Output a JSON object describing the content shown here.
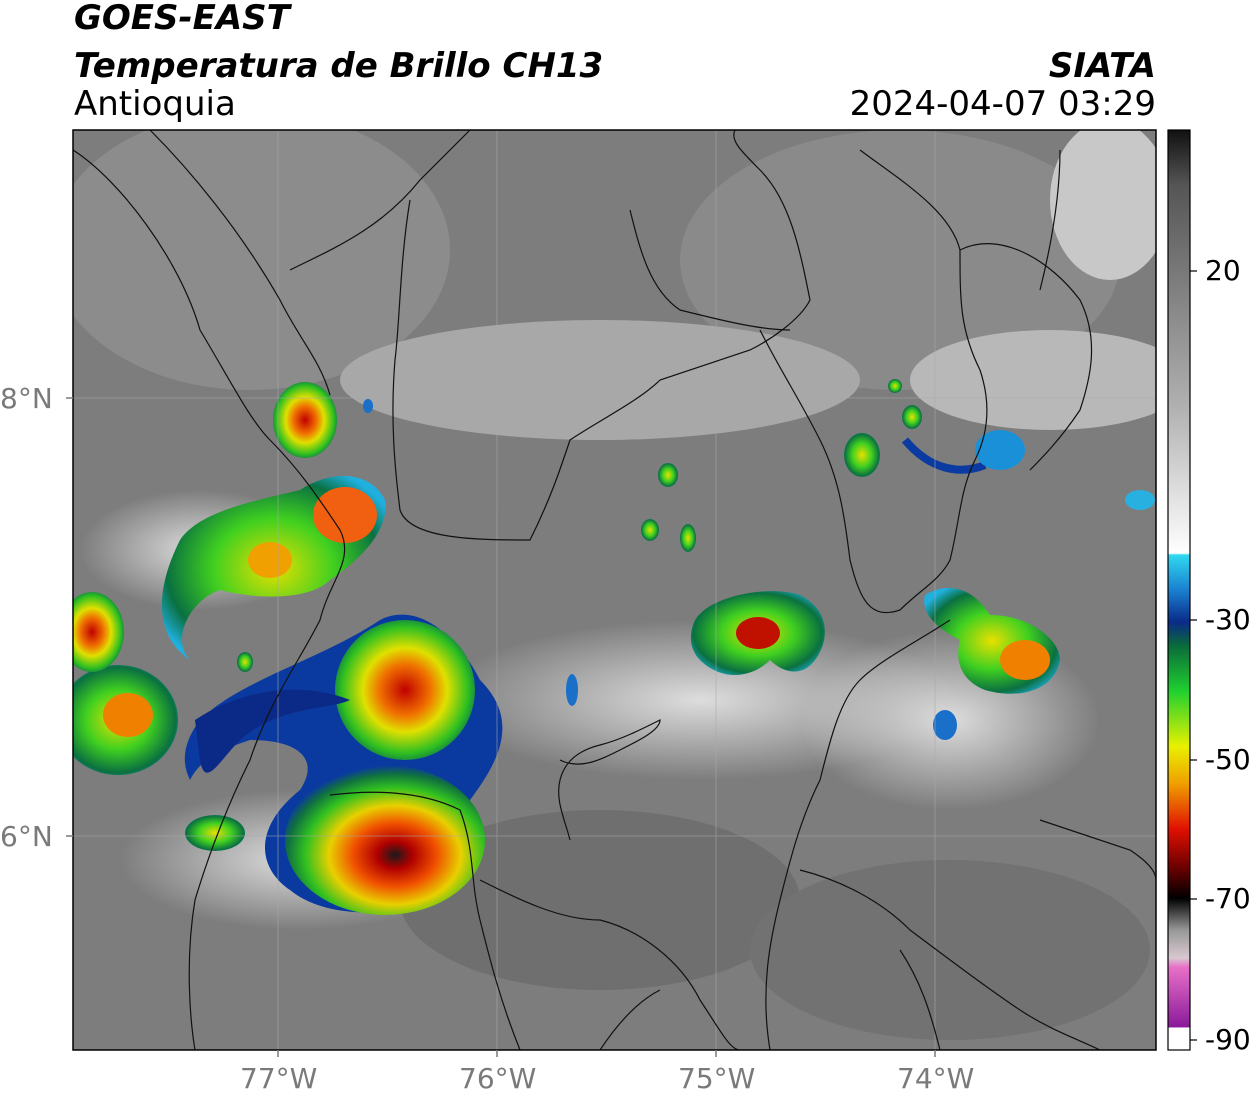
{
  "header": {
    "satellite": "GOES-EAST",
    "product": "Temperatura de Brillo CH13",
    "region": "Antioquia",
    "agency": "SIATA",
    "datetime": "2024-04-07 03:29"
  },
  "map": {
    "latitude_ticks": [
      "8°N",
      "6°N"
    ],
    "longitude_ticks": [
      "77°W",
      "76°W",
      "75°W",
      "74°W"
    ],
    "extent": {
      "lon_min": -77.95,
      "lon_max": -73.05,
      "lat_min": 5.05,
      "lat_max": 9.2
    }
  },
  "colorbar": {
    "tick_labels": [
      "20",
      "-30",
      "-50",
      "-70",
      "-90"
    ],
    "colors": {
      "warm_gray": "#7a7a7a",
      "cyan": "#27c8e8",
      "dark_blue": "#0b2a88",
      "green": "#10c020",
      "yellow": "#f0e800",
      "orange": "#f07800",
      "red": "#d00000",
      "black": "#000000",
      "pink": "#e060c0",
      "purple": "#8a1a9a"
    }
  }
}
